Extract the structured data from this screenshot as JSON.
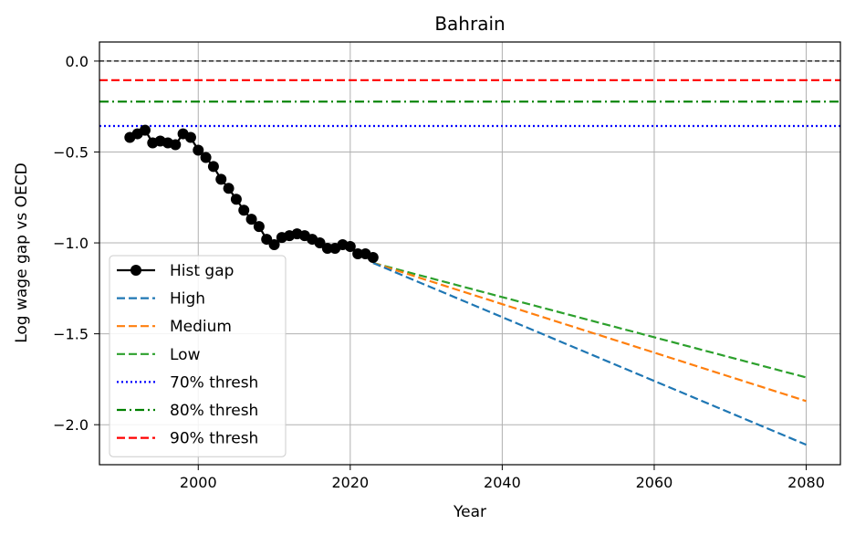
{
  "chart_data": {
    "type": "line",
    "title": "Bahrain",
    "xlabel": "Year",
    "ylabel": "Log wage gap vs OECD",
    "xlim": [
      1987,
      2084.5
    ],
    "ylim": [
      -2.22,
      0.105
    ],
    "xticks": [
      {
        "value": 2000,
        "label": "2000"
      },
      {
        "value": 2020,
        "label": "2020"
      },
      {
        "value": 2040,
        "label": "2040"
      },
      {
        "value": 2060,
        "label": "2060"
      },
      {
        "value": 2080,
        "label": "2080"
      }
    ],
    "yticks": [
      {
        "value": 0.0,
        "label": "0.0"
      },
      {
        "value": -0.5,
        "label": "−0.5"
      },
      {
        "value": -1.0,
        "label": "−1.0"
      },
      {
        "value": -1.5,
        "label": "−1.5"
      },
      {
        "value": -2.0,
        "label": "−2.0"
      }
    ],
    "grid": true,
    "legend_position": "lower-left",
    "reference_line": {
      "y": 0.0,
      "color": "#000000"
    },
    "thresholds": [
      {
        "name": "70% thresh",
        "y": -0.357,
        "color": "#0000ff",
        "style": "dotted"
      },
      {
        "name": "80% thresh",
        "y": -0.223,
        "color": "#008000",
        "style": "dashdot"
      },
      {
        "name": "90% thresh",
        "y": -0.105,
        "color": "#ff0000",
        "style": "dashed"
      }
    ],
    "series": [
      {
        "name": "Hist gap",
        "color": "#000000",
        "style": "solid-marker",
        "x": [
          1991,
          1992,
          1993,
          1994,
          1995,
          1996,
          1997,
          1998,
          1999,
          2000,
          2001,
          2002,
          2003,
          2004,
          2005,
          2006,
          2007,
          2008,
          2009,
          2010,
          2011,
          2012,
          2013,
          2014,
          2015,
          2016,
          2017,
          2018,
          2019,
          2020,
          2021,
          2022,
          2023
        ],
        "y": [
          -0.42,
          -0.4,
          -0.38,
          -0.45,
          -0.44,
          -0.45,
          -0.46,
          -0.4,
          -0.42,
          -0.49,
          -0.53,
          -0.58,
          -0.65,
          -0.7,
          -0.76,
          -0.82,
          -0.87,
          -0.91,
          -0.98,
          -1.01,
          -0.97,
          -0.96,
          -0.95,
          -0.96,
          -0.98,
          -1.0,
          -1.03,
          -1.03,
          -1.01,
          -1.02,
          -1.06,
          -1.06,
          -1.08
        ]
      },
      {
        "name": "High",
        "color": "#1f77b4",
        "style": "dashed",
        "x": [
          2023,
          2080
        ],
        "y": [
          -1.11,
          -2.11
        ]
      },
      {
        "name": "Medium",
        "color": "#ff7f0e",
        "style": "dashed",
        "x": [
          2023,
          2080
        ],
        "y": [
          -1.11,
          -1.87
        ]
      },
      {
        "name": "Low",
        "color": "#2ca02c",
        "style": "dashed",
        "x": [
          2023,
          2080
        ],
        "y": [
          -1.11,
          -1.74
        ]
      }
    ]
  }
}
